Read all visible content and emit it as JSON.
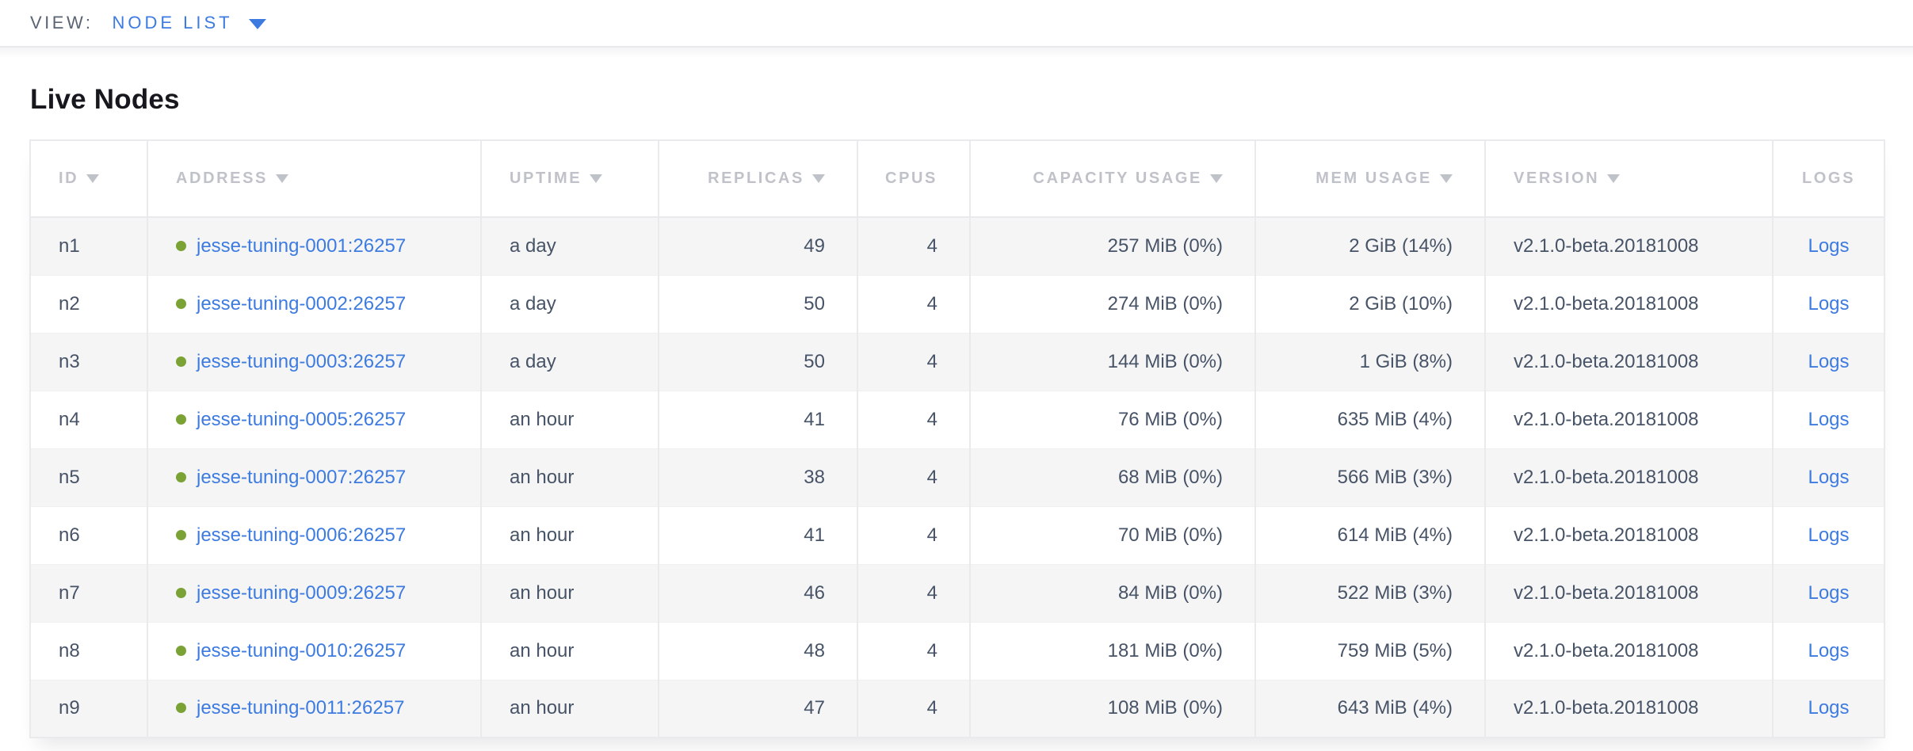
{
  "view_bar": {
    "label": "VIEW:",
    "selected": "NODE LIST"
  },
  "page": {
    "title": "Live Nodes"
  },
  "colors": {
    "link_blue": "#3d7be0",
    "status_healthy_green": "#7ba234",
    "header_text_gray": "#bfc2c8",
    "cell_text_slate": "#475366",
    "row_stripe": "#f5f5f6"
  },
  "nodes_table": {
    "columns": [
      {
        "id": "id",
        "label": "ID",
        "sortable": true
      },
      {
        "id": "address",
        "label": "ADDRESS",
        "sortable": true
      },
      {
        "id": "uptime",
        "label": "UPTIME",
        "sortable": true
      },
      {
        "id": "replicas",
        "label": "REPLICAS",
        "sortable": true
      },
      {
        "id": "cpus",
        "label": "CPUS",
        "sortable": false
      },
      {
        "id": "capacity",
        "label": "CAPACITY USAGE",
        "sortable": true
      },
      {
        "id": "mem",
        "label": "MEM USAGE",
        "sortable": true
      },
      {
        "id": "version",
        "label": "VERSION",
        "sortable": true
      },
      {
        "id": "logs",
        "label": "LOGS",
        "sortable": false
      }
    ],
    "rows": [
      {
        "id": "n1",
        "status": "healthy",
        "address": "jesse-tuning-0001:26257",
        "uptime": "a day",
        "replicas": "49",
        "cpus": "4",
        "capacity": "257 MiB (0%)",
        "mem": "2 GiB (14%)",
        "version": "v2.1.0-beta.20181008",
        "logs": "Logs"
      },
      {
        "id": "n2",
        "status": "healthy",
        "address": "jesse-tuning-0002:26257",
        "uptime": "a day",
        "replicas": "50",
        "cpus": "4",
        "capacity": "274 MiB (0%)",
        "mem": "2 GiB (10%)",
        "version": "v2.1.0-beta.20181008",
        "logs": "Logs"
      },
      {
        "id": "n3",
        "status": "healthy",
        "address": "jesse-tuning-0003:26257",
        "uptime": "a day",
        "replicas": "50",
        "cpus": "4",
        "capacity": "144 MiB (0%)",
        "mem": "1 GiB (8%)",
        "version": "v2.1.0-beta.20181008",
        "logs": "Logs"
      },
      {
        "id": "n4",
        "status": "healthy",
        "address": "jesse-tuning-0005:26257",
        "uptime": "an hour",
        "replicas": "41",
        "cpus": "4",
        "capacity": "76 MiB (0%)",
        "mem": "635 MiB (4%)",
        "version": "v2.1.0-beta.20181008",
        "logs": "Logs"
      },
      {
        "id": "n5",
        "status": "healthy",
        "address": "jesse-tuning-0007:26257",
        "uptime": "an hour",
        "replicas": "38",
        "cpus": "4",
        "capacity": "68 MiB (0%)",
        "mem": "566 MiB (3%)",
        "version": "v2.1.0-beta.20181008",
        "logs": "Logs"
      },
      {
        "id": "n6",
        "status": "healthy",
        "address": "jesse-tuning-0006:26257",
        "uptime": "an hour",
        "replicas": "41",
        "cpus": "4",
        "capacity": "70 MiB (0%)",
        "mem": "614 MiB (4%)",
        "version": "v2.1.0-beta.20181008",
        "logs": "Logs"
      },
      {
        "id": "n7",
        "status": "healthy",
        "address": "jesse-tuning-0009:26257",
        "uptime": "an hour",
        "replicas": "46",
        "cpus": "4",
        "capacity": "84 MiB (0%)",
        "mem": "522 MiB (3%)",
        "version": "v2.1.0-beta.20181008",
        "logs": "Logs"
      },
      {
        "id": "n8",
        "status": "healthy",
        "address": "jesse-tuning-0010:26257",
        "uptime": "an hour",
        "replicas": "48",
        "cpus": "4",
        "capacity": "181 MiB (0%)",
        "mem": "759 MiB (5%)",
        "version": "v2.1.0-beta.20181008",
        "logs": "Logs"
      },
      {
        "id": "n9",
        "status": "healthy",
        "address": "jesse-tuning-0011:26257",
        "uptime": "an hour",
        "replicas": "47",
        "cpus": "4",
        "capacity": "108 MiB (0%)",
        "mem": "643 MiB (4%)",
        "version": "v2.1.0-beta.20181008",
        "logs": "Logs"
      }
    ]
  }
}
